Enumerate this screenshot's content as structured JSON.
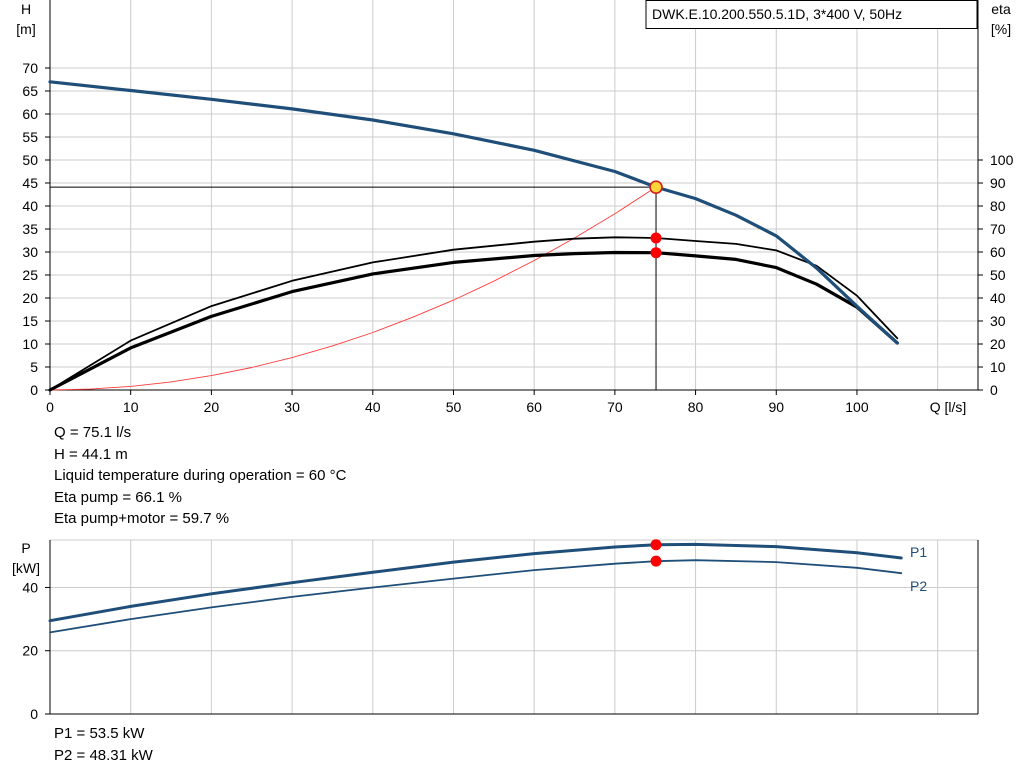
{
  "chart_data": [
    {
      "type": "line",
      "title": "DWK.E.10.200.550.5.1D, 3*400  V, 50Hz",
      "xlabel": "Q [l/s]",
      "ylabel": [
        "H",
        "[m]"
      ],
      "y2label": [
        "eta",
        "[%]"
      ],
      "xlim": [
        0,
        115
      ],
      "ylim": [
        0,
        75
      ],
      "y2lim": [
        0,
        100
      ],
      "grid": true,
      "x_ticks": [
        0,
        10,
        20,
        30,
        40,
        50,
        60,
        70,
        80,
        90,
        100
      ],
      "y_ticks": [
        0,
        5,
        10,
        15,
        20,
        25,
        30,
        35,
        40,
        45,
        50,
        55,
        60,
        65,
        70
      ],
      "y2_ticks": [
        0,
        10,
        20,
        30,
        40,
        50,
        60,
        70,
        80,
        90,
        100
      ],
      "series": [
        {
          "kind": "head",
          "color": "#1f4e79",
          "width": 3.2,
          "x": [
            0,
            10,
            20,
            30,
            40,
            50,
            60,
            70,
            75.1,
            80,
            85,
            90,
            95,
            100,
            105
          ],
          "y": [
            67,
            65.1,
            63.2,
            61.1,
            58.7,
            55.7,
            52.1,
            47.5,
            44.1,
            41.6,
            38.0,
            33.5,
            26.5,
            18.2,
            10.2
          ]
        },
        {
          "kind": "eta_pump",
          "axis": "y2",
          "color": "#000000",
          "width": 1.8,
          "x": [
            0,
            10,
            20,
            30,
            40,
            50,
            60,
            65,
            70,
            75.1,
            80,
            85,
            90,
            95,
            100,
            105
          ],
          "y": [
            0,
            21.5,
            36.5,
            47.5,
            55.5,
            61.0,
            64.5,
            65.8,
            66.4,
            66.1,
            64.8,
            63.5,
            60.7,
            54.0,
            41.0,
            22.5
          ]
        },
        {
          "kind": "eta_pump_motor",
          "axis": "y2",
          "color": "#000000",
          "width": 3.2,
          "x": [
            0,
            10,
            20,
            30,
            40,
            50,
            60,
            65,
            70,
            75.1,
            80,
            85,
            90,
            95,
            100,
            105
          ],
          "y": [
            0,
            18.3,
            32.0,
            42.8,
            50.5,
            55.5,
            58.5,
            59.3,
            59.8,
            59.7,
            58.3,
            56.8,
            53.2,
            46.0,
            36.0,
            20.5
          ]
        },
        {
          "kind": "system_curve",
          "color": "#ff3b3b",
          "width": 0.9,
          "x": [
            0,
            5,
            10,
            15,
            20,
            25,
            30,
            35,
            40,
            45,
            50,
            55,
            60,
            65,
            70,
            75.1
          ],
          "y": [
            0,
            0.2,
            0.78,
            1.76,
            3.13,
            4.89,
            7.04,
            9.58,
            12.51,
            15.84,
            19.55,
            23.66,
            28.16,
            33.04,
            38.32,
            44.1
          ]
        }
      ],
      "operating_point": {
        "x": 75.1,
        "h": 44.1,
        "eta_pump": 66.1,
        "eta_pump_motor": 59.7
      }
    },
    {
      "type": "line",
      "ylabel": [
        "P",
        "[kW]"
      ],
      "xlim": [
        0,
        115
      ],
      "ylim": [
        0,
        55
      ],
      "grid": true,
      "x_ticks": [
        0,
        10,
        20,
        30,
        40,
        50,
        60,
        70,
        80,
        90,
        100
      ],
      "y_ticks": [
        0,
        20,
        40
      ],
      "series": [
        {
          "name": "P1",
          "color": "#1f4e79",
          "width": 3,
          "x": [
            0,
            10,
            20,
            30,
            40,
            50,
            60,
            70,
            75.1,
            80,
            90,
            100,
            105.5
          ],
          "y": [
            29.5,
            34.0,
            38.0,
            41.5,
            44.8,
            48.0,
            50.7,
            52.8,
            53.5,
            53.6,
            52.9,
            51.0,
            49.3
          ]
        },
        {
          "name": "P2",
          "color": "#1f4e79",
          "width": 1.8,
          "x": [
            0,
            10,
            20,
            30,
            40,
            50,
            60,
            70,
            75.1,
            80,
            90,
            100,
            105.5
          ],
          "y": [
            25.8,
            30.0,
            33.7,
            37.0,
            40.0,
            42.8,
            45.5,
            47.5,
            48.31,
            48.6,
            48.0,
            46.2,
            44.5
          ]
        }
      ],
      "markers": [
        {
          "x": 75.1,
          "y": 53.5
        },
        {
          "x": 75.1,
          "y": 48.31
        }
      ]
    }
  ],
  "info_top": [
    "Q = 75.1 l/s",
    "H = 44.1 m",
    "Liquid temperature during operation = 60 °C",
    "Eta pump = 66.1 %",
    "Eta pump+motor = 59.7 %"
  ],
  "info_bottom": [
    "P1 = 53.5 kW",
    "P2 = 48.31 kW"
  ]
}
